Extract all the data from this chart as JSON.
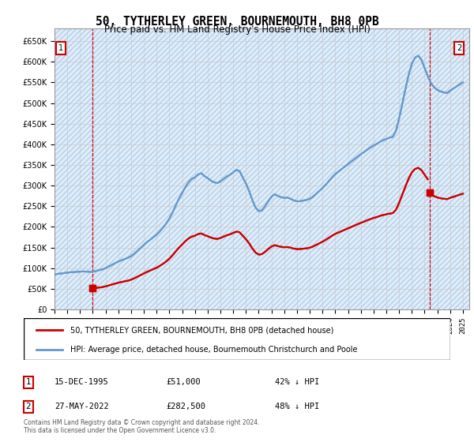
{
  "title": "50, TYTHERLEY GREEN, BOURNEMOUTH, BH8 0PB",
  "subtitle": "Price paid vs. HM Land Registry's House Price Index (HPI)",
  "legend_line1": "50, TYTHERLEY GREEN, BOURNEMOUTH, BH8 0PB (detached house)",
  "legend_line2": "HPI: Average price, detached house, Bournemouth Christchurch and Poole",
  "annotation1_label": "1",
  "annotation1_date": "15-DEC-1995",
  "annotation1_price": "£51,000",
  "annotation1_hpi": "42% ↓ HPI",
  "annotation2_label": "2",
  "annotation2_date": "27-MAY-2022",
  "annotation2_price": "£282,500",
  "annotation2_hpi": "48% ↓ HPI",
  "footnote": "Contains HM Land Registry data © Crown copyright and database right 2024.\nThis data is licensed under the Open Government Licence v3.0.",
  "hpi_color": "#6699cc",
  "price_color": "#cc0000",
  "marker_color": "#cc0000",
  "grid_color": "#cccccc",
  "bg_color": "#ddeeff",
  "ylim": [
    0,
    680000
  ],
  "yticks": [
    0,
    50000,
    100000,
    150000,
    200000,
    250000,
    300000,
    350000,
    400000,
    450000,
    500000,
    550000,
    600000,
    650000
  ],
  "xlim_start": 1993.0,
  "xlim_end": 2025.5,
  "xticks": [
    1993,
    1994,
    1995,
    1996,
    1997,
    1998,
    1999,
    2000,
    2001,
    2002,
    2003,
    2004,
    2005,
    2006,
    2007,
    2008,
    2009,
    2010,
    2011,
    2012,
    2013,
    2014,
    2015,
    2016,
    2017,
    2018,
    2019,
    2020,
    2021,
    2022,
    2023,
    2024,
    2025
  ],
  "sale1_x": 1995.96,
  "sale1_y": 51000,
  "sale2_x": 2022.41,
  "sale2_y": 282500,
  "hpi_x": [
    1993.0,
    1993.25,
    1993.5,
    1993.75,
    1994.0,
    1994.25,
    1994.5,
    1994.75,
    1995.0,
    1995.25,
    1995.5,
    1995.75,
    1996.0,
    1996.25,
    1996.5,
    1996.75,
    1997.0,
    1997.25,
    1997.5,
    1997.75,
    1998.0,
    1998.25,
    1998.5,
    1998.75,
    1999.0,
    1999.25,
    1999.5,
    1999.75,
    2000.0,
    2000.25,
    2000.5,
    2000.75,
    2001.0,
    2001.25,
    2001.5,
    2001.75,
    2002.0,
    2002.25,
    2002.5,
    2002.75,
    2003.0,
    2003.25,
    2003.5,
    2003.75,
    2004.0,
    2004.25,
    2004.5,
    2004.75,
    2005.0,
    2005.25,
    2005.5,
    2005.75,
    2006.0,
    2006.25,
    2006.5,
    2006.75,
    2007.0,
    2007.25,
    2007.5,
    2007.75,
    2008.0,
    2008.25,
    2008.5,
    2008.75,
    2009.0,
    2009.25,
    2009.5,
    2009.75,
    2010.0,
    2010.25,
    2010.5,
    2010.75,
    2011.0,
    2011.25,
    2011.5,
    2011.75,
    2012.0,
    2012.25,
    2012.5,
    2012.75,
    2013.0,
    2013.25,
    2013.5,
    2013.75,
    2014.0,
    2014.25,
    2014.5,
    2014.75,
    2015.0,
    2015.25,
    2015.5,
    2015.75,
    2016.0,
    2016.25,
    2016.5,
    2016.75,
    2017.0,
    2017.25,
    2017.5,
    2017.75,
    2018.0,
    2018.25,
    2018.5,
    2018.75,
    2019.0,
    2019.25,
    2019.5,
    2019.75,
    2020.0,
    2020.25,
    2020.5,
    2020.75,
    2021.0,
    2021.25,
    2021.5,
    2021.75,
    2022.0,
    2022.25,
    2022.5,
    2022.75,
    2023.0,
    2023.25,
    2023.5,
    2023.75,
    2024.0,
    2024.25,
    2024.5,
    2024.75,
    2025.0
  ],
  "hpi_y": [
    85000,
    86000,
    87000,
    88000,
    89000,
    90000,
    90500,
    91000,
    91500,
    92000,
    91500,
    91000,
    91500,
    93000,
    95000,
    97000,
    100000,
    104000,
    108000,
    112000,
    116000,
    119000,
    122000,
    125000,
    129000,
    135000,
    142000,
    149000,
    156000,
    163000,
    169000,
    175000,
    181000,
    189000,
    198000,
    208000,
    220000,
    235000,
    252000,
    268000,
    282000,
    296000,
    308000,
    316000,
    320000,
    327000,
    330000,
    323000,
    318000,
    312000,
    308000,
    306000,
    310000,
    316000,
    322000,
    326000,
    332000,
    338000,
    335000,
    320000,
    305000,
    287000,
    265000,
    247000,
    238000,
    240000,
    250000,
    262000,
    273000,
    279000,
    275000,
    272000,
    270000,
    271000,
    268000,
    264000,
    262000,
    262000,
    264000,
    265000,
    268000,
    273000,
    280000,
    287000,
    294000,
    302000,
    311000,
    320000,
    328000,
    334000,
    340000,
    346000,
    352000,
    358000,
    364000,
    370000,
    376000,
    381000,
    387000,
    392000,
    397000,
    401000,
    406000,
    410000,
    413000,
    416000,
    418000,
    432000,
    462000,
    498000,
    534000,
    568000,
    595000,
    610000,
    615000,
    605000,
    585000,
    565000,
    548000,
    538000,
    532000,
    528000,
    526000,
    524000,
    530000,
    535000,
    540000,
    545000,
    550000
  ]
}
